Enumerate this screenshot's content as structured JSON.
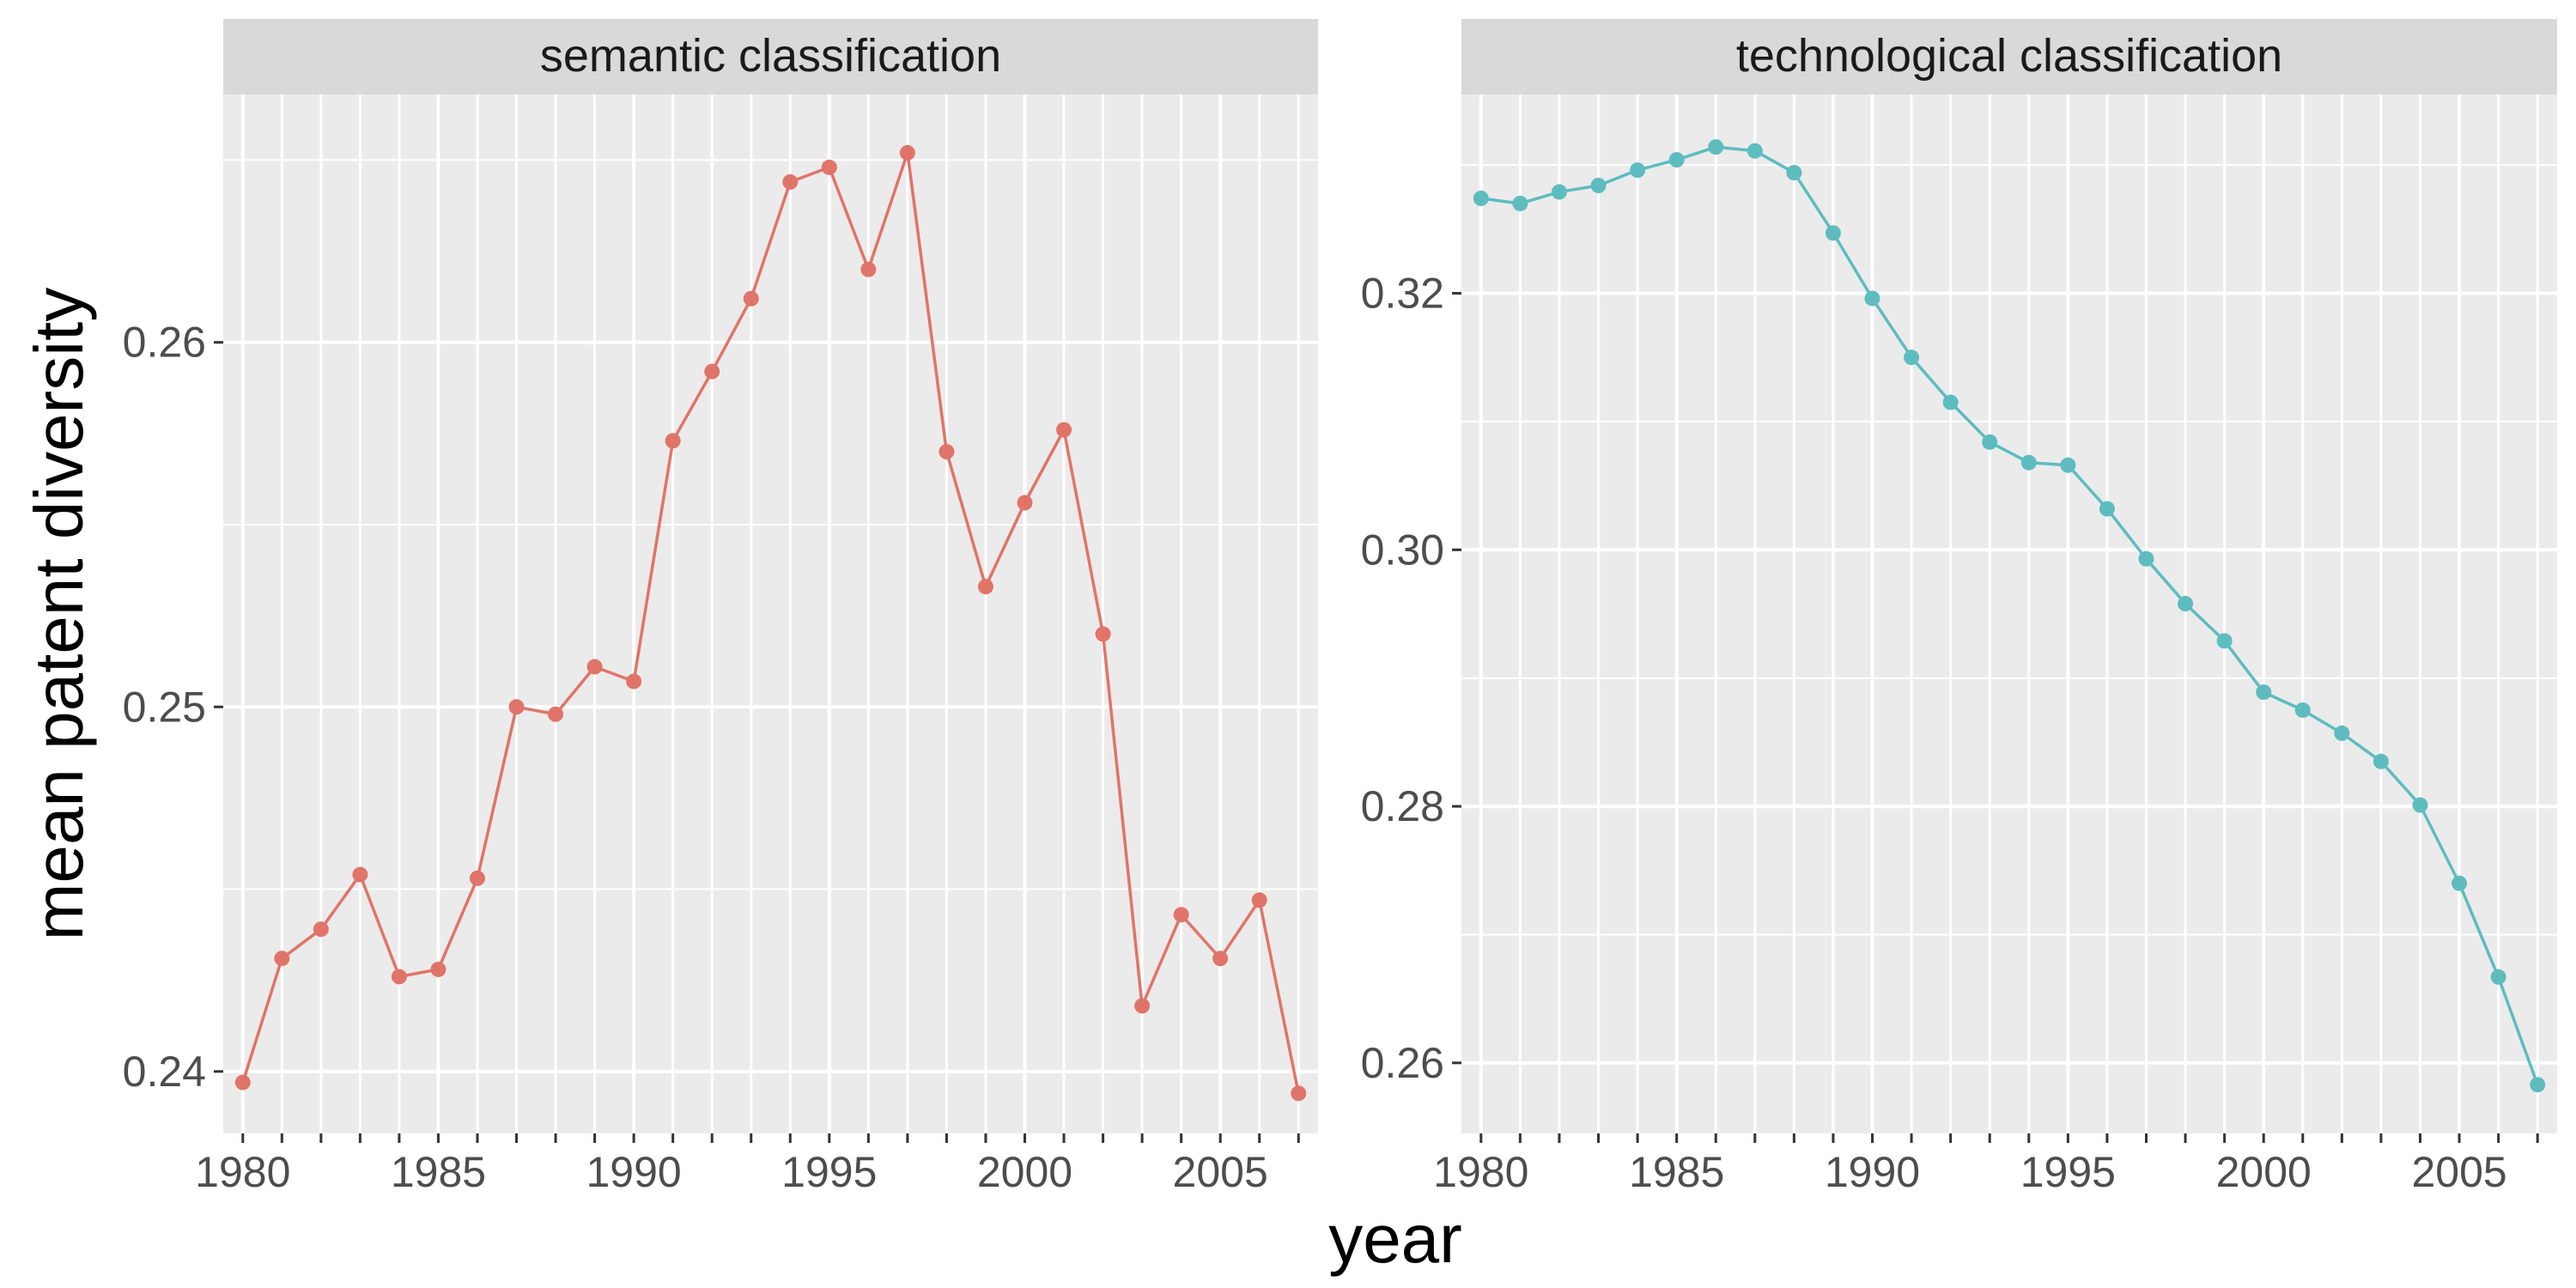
{
  "chart_data": {
    "type": "line",
    "xlabel": "year",
    "ylabel": "mean patent diversity",
    "panel_background": "#ebebeb",
    "strip_background": "#d9d9d9",
    "grid_color": "#ffffff",
    "panels": [
      {
        "title": "semantic classification",
        "color": "#e07469",
        "xlim": [
          1979.5,
          2007.5
        ],
        "ylim": [
          0.2383,
          0.2668
        ],
        "x_ticks": [
          "1980",
          "1985",
          "1990",
          "1995",
          "2000",
          "2005"
        ],
        "y_ticks": [
          "0.24",
          "0.25",
          "0.26"
        ],
        "x": [
          1980,
          1981,
          1982,
          1983,
          1984,
          1985,
          1986,
          1987,
          1988,
          1989,
          1990,
          1991,
          1992,
          1993,
          1994,
          1995,
          1996,
          1997,
          1998,
          1999,
          2000,
          2001,
          2002,
          2003,
          2004,
          2005,
          2006,
          2007
        ],
        "values": [
          0.2397,
          0.2431,
          0.2439,
          0.2454,
          0.2426,
          0.2428,
          0.2453,
          0.25,
          0.2498,
          0.2511,
          0.2507,
          0.2573,
          0.2592,
          0.2612,
          0.2644,
          0.2648,
          0.262,
          0.2652,
          0.257,
          0.2533,
          0.2556,
          0.2576,
          0.252,
          0.2418,
          0.2443,
          0.2431,
          0.2447,
          0.2394
        ]
      },
      {
        "title": "technological classification",
        "color": "#5ebcbf",
        "xlim": [
          1979.5,
          2007.5
        ],
        "ylim": [
          0.2545,
          0.3355
        ],
        "x_ticks": [
          "1980",
          "1985",
          "1990",
          "1995",
          "2000",
          "2005"
        ],
        "y_ticks": [
          "0.26",
          "0.28",
          "0.30",
          "0.32"
        ],
        "x": [
          1980,
          1981,
          1982,
          1983,
          1984,
          1985,
          1986,
          1987,
          1988,
          1989,
          1990,
          1991,
          1992,
          1993,
          1994,
          1995,
          1996,
          1997,
          1998,
          1999,
          2000,
          2001,
          2002,
          2003,
          2004,
          2005,
          2006,
          2007
        ],
        "values": [
          0.3274,
          0.327,
          0.3279,
          0.3284,
          0.3296,
          0.3304,
          0.3314,
          0.3311,
          0.3294,
          0.3247,
          0.3196,
          0.315,
          0.3115,
          0.3084,
          0.3068,
          0.3066,
          0.3032,
          0.2993,
          0.2958,
          0.2929,
          0.2889,
          0.2875,
          0.2857,
          0.2835,
          0.2801,
          0.274,
          0.2667,
          0.2583
        ]
      }
    ]
  }
}
